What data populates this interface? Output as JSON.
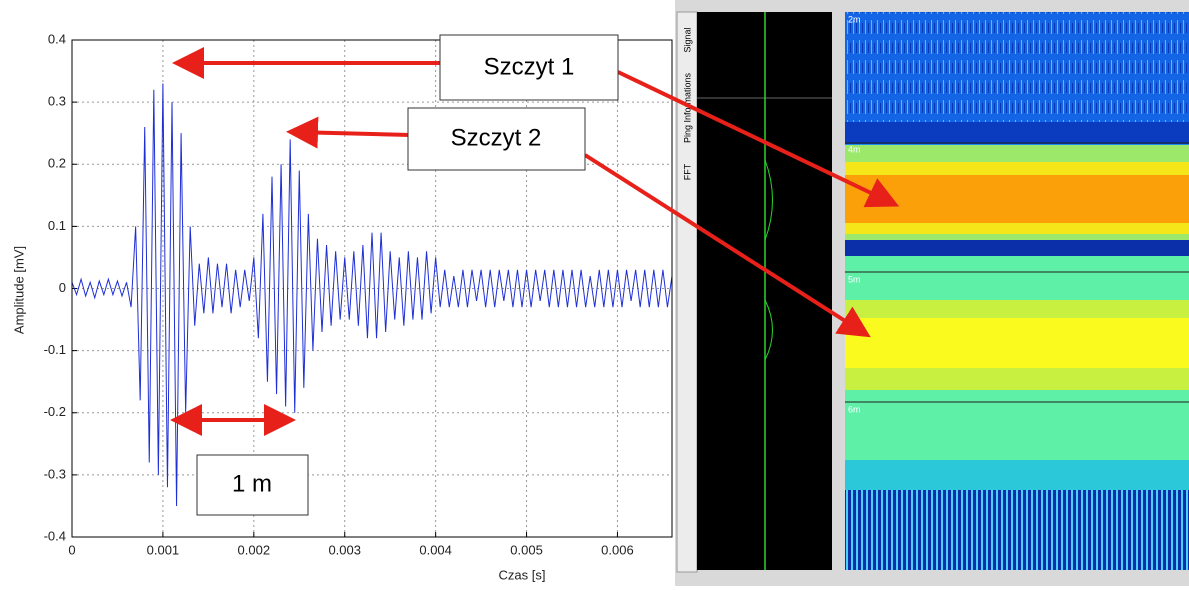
{
  "chart_data": {
    "type": "line",
    "y_label": "Amplitude [mV]",
    "x_label": "Czas [s]",
    "annotations": [
      "Szczyt 1",
      "Szczyt 2",
      "1 m"
    ],
    "x": [
      0,
      5e-05,
      0.0001,
      0.00015,
      0.0002,
      0.00025,
      0.0003,
      0.00035,
      0.0004,
      0.00045,
      0.0005,
      0.00055,
      0.0006,
      0.00065,
      0.0007,
      0.00075,
      0.0008,
      0.00085,
      0.0009,
      0.00095,
      0.001,
      0.00105,
      0.0011,
      0.00115,
      0.0012,
      0.00125,
      0.0013,
      0.00135,
      0.0014,
      0.00145,
      0.0015,
      0.00155,
      0.0016,
      0.00165,
      0.0017,
      0.00175,
      0.0018,
      0.00185,
      0.0019,
      0.00195,
      0.002,
      0.00205,
      0.0021,
      0.00215,
      0.0022,
      0.00225,
      0.0023,
      0.00235,
      0.0024,
      0.00245,
      0.0025,
      0.00255,
      0.0026,
      0.00265,
      0.0027,
      0.00275,
      0.0028,
      0.00285,
      0.0029,
      0.00295,
      0.003,
      0.00305,
      0.0031,
      0.00315,
      0.0032,
      0.00325,
      0.0033,
      0.00335,
      0.0034,
      0.00345,
      0.0035,
      0.00355,
      0.0036,
      0.00365,
      0.0037,
      0.00375,
      0.0038,
      0.00385,
      0.0039,
      0.00395,
      0.004,
      0.00405,
      0.0041,
      0.00415,
      0.0042,
      0.00425,
      0.0043,
      0.00435,
      0.0044,
      0.00445,
      0.0045,
      0.00455,
      0.0046,
      0.00465,
      0.0047,
      0.00475,
      0.0048,
      0.00485,
      0.0049,
      0.00495,
      0.005,
      0.00505,
      0.0051,
      0.00515,
      0.0052,
      0.00525,
      0.0053,
      0.00535,
      0.0054,
      0.00545,
      0.0055,
      0.00555,
      0.0056,
      0.00565,
      0.0057,
      0.00575,
      0.0058,
      0.00585,
      0.0059,
      0.00595,
      0.006,
      0.00605,
      0.0061,
      0.00615,
      0.0062,
      0.00625,
      0.0063,
      0.00635,
      0.0064,
      0.00645,
      0.0065,
      0.00655,
      0.0066
    ],
    "series": [
      {
        "color": "#1f2fd6",
        "values": [
          0.01,
          -0.01,
          0.015,
          -0.012,
          0.01,
          -0.015,
          0.012,
          -0.01,
          0.015,
          -0.01,
          0.012,
          -0.012,
          0.01,
          -0.03,
          0.1,
          -0.18,
          0.26,
          -0.28,
          0.32,
          -0.3,
          0.33,
          -0.32,
          0.3,
          -0.35,
          0.25,
          -0.2,
          0.1,
          -0.06,
          0.04,
          -0.04,
          0.05,
          -0.04,
          0.04,
          -0.03,
          0.04,
          -0.04,
          0.03,
          -0.03,
          0.03,
          -0.02,
          0.05,
          -0.08,
          0.12,
          -0.15,
          0.18,
          -0.17,
          0.2,
          -0.19,
          0.24,
          -0.2,
          0.19,
          -0.16,
          0.12,
          -0.1,
          0.08,
          -0.07,
          0.07,
          -0.06,
          0.06,
          -0.05,
          0.05,
          -0.05,
          0.06,
          -0.06,
          0.07,
          -0.08,
          0.09,
          -0.08,
          0.09,
          -0.07,
          0.06,
          -0.05,
          0.05,
          -0.06,
          0.06,
          -0.05,
          0.05,
          -0.05,
          0.06,
          -0.04,
          0.05,
          -0.03,
          0.03,
          -0.03,
          0.02,
          -0.03,
          0.03,
          -0.03,
          0.03,
          -0.02,
          0.03,
          -0.03,
          0.03,
          -0.03,
          0.03,
          -0.02,
          0.03,
          -0.03,
          0.03,
          -0.03,
          0.03,
          -0.03,
          0.03,
          -0.02,
          0.03,
          -0.03,
          0.03,
          -0.03,
          0.03,
          -0.03,
          0.03,
          -0.03,
          0.03,
          -0.03,
          0.02,
          -0.03,
          0.03,
          -0.03,
          0.03,
          -0.03,
          0.03,
          -0.03,
          0.03,
          -0.02,
          0.03,
          -0.03,
          0.03,
          -0.03,
          0.03,
          -0.03,
          0.03,
          -0.03,
          0.02
        ]
      }
    ],
    "xlim": [
      0,
      0.0066
    ],
    "xticks": [
      0,
      0.001,
      0.002,
      0.003,
      0.004,
      0.005,
      0.006
    ],
    "ylim": [
      -0.4,
      0.4
    ],
    "yticks": [
      -0.4,
      -0.3,
      -0.2,
      -0.1,
      0,
      0.1,
      0.2,
      0.3,
      0.4
    ],
    "grid": true
  },
  "sonar_panel": {
    "tabs": [
      "Signal",
      "Ping Informations",
      "FFT"
    ],
    "depth_labels": [
      "2m",
      "4m",
      "5m",
      "6m"
    ]
  }
}
